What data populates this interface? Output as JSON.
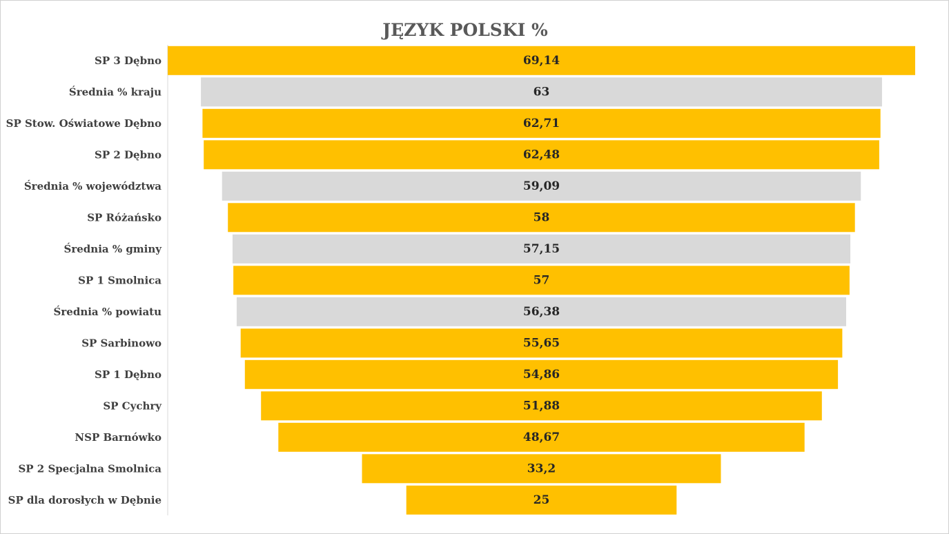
{
  "chart_data": {
    "type": "bar",
    "orientation": "horizontal",
    "style": "funnel",
    "title": "JĘZYK POLSKI %",
    "categories": [
      "SP 3 Dębno",
      "Średnia % kraju",
      "SP Stow. Oświatowe Dębno",
      "SP 2 Dębno",
      "Średnia % województwa",
      "SP Różańsko",
      "Średnia % gminy",
      "SP 1 Smolnica",
      "Średnia % powiatu",
      "SP Sarbinowo",
      "SP 1 Dębno",
      "SP Cychry",
      "NSP Barnówko",
      "SP 2 Specjalna Smolnica",
      "SP dla dorosłych w Dębnie"
    ],
    "values": [
      69.14,
      63,
      62.71,
      62.48,
      59.09,
      58,
      57.15,
      57,
      56.38,
      55.65,
      54.86,
      51.88,
      48.67,
      33.2,
      25
    ],
    "value_labels": [
      "69,14",
      "63",
      "62,71",
      "62,48",
      "59,09",
      "58",
      "57,15",
      "57",
      "56,38",
      "55,65",
      "54,86",
      "51,88",
      "48,67",
      "33,2",
      "25"
    ],
    "bar_kinds": [
      "school",
      "average",
      "school",
      "school",
      "average",
      "school",
      "average",
      "school",
      "average",
      "school",
      "school",
      "school",
      "school",
      "school",
      "school"
    ],
    "colors": {
      "school": "#FFC000",
      "average": "#D9D9D9",
      "axis": "#D9D9D9"
    },
    "xlim": [
      0,
      69.14
    ],
    "grid": false,
    "legend": "none"
  }
}
